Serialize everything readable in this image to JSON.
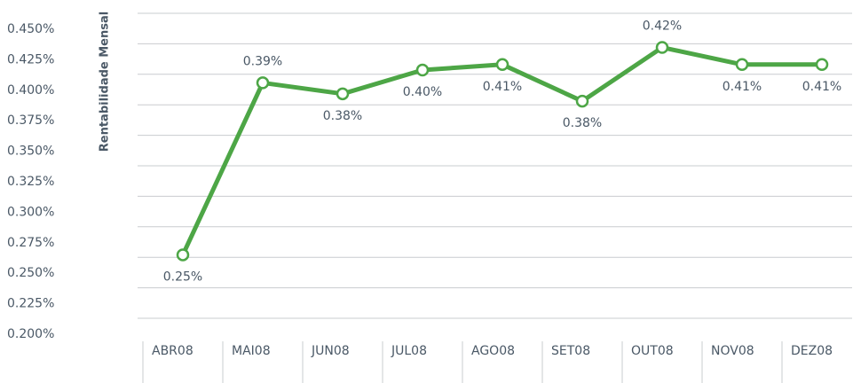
{
  "chart_data": {
    "type": "line",
    "y_axis_label": "Rentabilidade Mensal",
    "categories": [
      "ABR08",
      "MAI08",
      "JUN08",
      "JUL08",
      "AGO08",
      "SET08",
      "OUT08",
      "NOV08",
      "DEZ08"
    ],
    "series": [
      {
        "name": "Rentabilidade Mensal",
        "color": "#4da646",
        "values": [
          0.252,
          0.393,
          0.384,
          0.4035,
          0.408,
          0.378,
          0.422,
          0.408,
          0.408
        ],
        "value_labels": [
          "0.25%",
          "0.39%",
          "0.38%",
          "0.40%",
          "0.41%",
          "0.38%",
          "0.42%",
          "0.41%",
          "0.41%"
        ]
      }
    ],
    "ylim": [
      0.2,
      0.45
    ],
    "yticks": [
      {
        "value": 0.2,
        "label": "0.200%"
      },
      {
        "value": 0.225,
        "label": "0.225%"
      },
      {
        "value": 0.25,
        "label": "0.250%"
      },
      {
        "value": 0.275,
        "label": "0.275%"
      },
      {
        "value": 0.3,
        "label": "0.300%"
      },
      {
        "value": 0.325,
        "label": "0.325%"
      },
      {
        "value": 0.35,
        "label": "0.350%"
      },
      {
        "value": 0.375,
        "label": "0.375%"
      },
      {
        "value": 0.4,
        "label": "0.400%"
      },
      {
        "value": 0.425,
        "label": "0.425%"
      },
      {
        "value": 0.45,
        "label": "0.450%"
      }
    ],
    "grid": true
  }
}
